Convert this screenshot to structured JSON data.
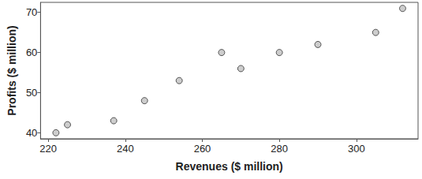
{
  "chart_data": {
    "type": "scatter",
    "x_label": "Revenues ($ million)",
    "y_label": "Profits ($ million)",
    "x": [
      222,
      225,
      237,
      245,
      254,
      265,
      270,
      280,
      290,
      305,
      312
    ],
    "values": [
      40,
      42,
      43,
      48,
      53,
      60,
      56,
      60,
      62,
      65,
      71
    ],
    "color": "#c0c0c0",
    "marker": "circle",
    "xlim": [
      218,
      316
    ],
    "xticks": [
      220,
      240,
      260,
      280,
      300
    ],
    "ylim": [
      38.5,
      72.5
    ],
    "yticks": [
      40,
      50,
      60,
      70
    ],
    "grid": false
  }
}
